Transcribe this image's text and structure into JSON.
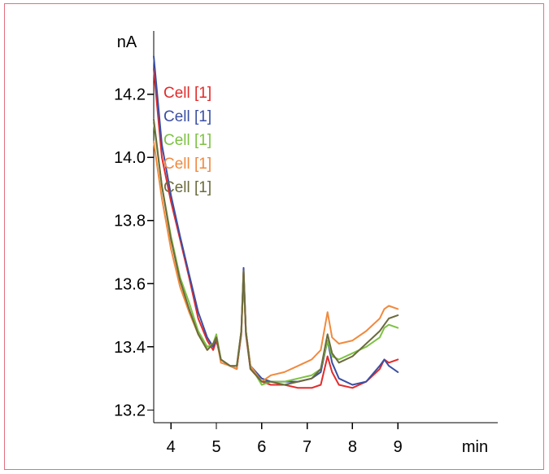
{
  "chart_data": {
    "type": "line",
    "title": "",
    "xlabel": "min",
    "ylabel": "nA",
    "xlim": [
      3.62,
      11.2
    ],
    "ylim": [
      13.16,
      14.4
    ],
    "xticks": [
      4,
      5,
      6,
      7,
      8,
      9
    ],
    "xtick_labels": [
      "4",
      "5",
      "6",
      "7",
      "8",
      "9"
    ],
    "yticks": [
      13.2,
      13.4,
      13.6,
      13.8,
      14.0,
      14.2
    ],
    "ytick_labels": [
      "13.2",
      "13.4",
      "13.6",
      "13.8",
      "14.0",
      "14.2"
    ],
    "grid": false,
    "legend_position": "top-left",
    "series": [
      {
        "name": "Cell [1]",
        "color": "#e32b2b",
        "points": [
          [
            3.62,
            14.28
          ],
          [
            3.8,
            14.0
          ],
          [
            4.0,
            13.86
          ],
          [
            4.2,
            13.74
          ],
          [
            4.4,
            13.62
          ],
          [
            4.6,
            13.49
          ],
          [
            4.8,
            13.42
          ],
          [
            4.93,
            13.39
          ],
          [
            5.0,
            13.42
          ],
          [
            5.1,
            13.36
          ],
          [
            5.3,
            13.34
          ],
          [
            5.45,
            13.33
          ],
          [
            5.55,
            13.44
          ],
          [
            5.6,
            13.63
          ],
          [
            5.65,
            13.44
          ],
          [
            5.75,
            13.33
          ],
          [
            6.0,
            13.29
          ],
          [
            6.2,
            13.28
          ],
          [
            6.5,
            13.28
          ],
          [
            6.8,
            13.27
          ],
          [
            7.1,
            13.27
          ],
          [
            7.3,
            13.28
          ],
          [
            7.45,
            13.37
          ],
          [
            7.55,
            13.32
          ],
          [
            7.7,
            13.28
          ],
          [
            8.0,
            13.27
          ],
          [
            8.3,
            13.29
          ],
          [
            8.6,
            13.33
          ],
          [
            8.7,
            13.36
          ],
          [
            8.8,
            13.35
          ],
          [
            9.0,
            13.36
          ]
        ]
      },
      {
        "name": "Cell [1]",
        "color": "#3b4fa3",
        "points": [
          [
            3.62,
            14.32
          ],
          [
            3.8,
            14.04
          ],
          [
            4.0,
            13.88
          ],
          [
            4.2,
            13.75
          ],
          [
            4.4,
            13.63
          ],
          [
            4.6,
            13.51
          ],
          [
            4.8,
            13.43
          ],
          [
            4.93,
            13.4
          ],
          [
            5.0,
            13.43
          ],
          [
            5.1,
            13.36
          ],
          [
            5.3,
            13.34
          ],
          [
            5.45,
            13.33
          ],
          [
            5.55,
            13.45
          ],
          [
            5.6,
            13.65
          ],
          [
            5.65,
            13.45
          ],
          [
            5.75,
            13.34
          ],
          [
            6.0,
            13.3
          ],
          [
            6.2,
            13.29
          ],
          [
            6.5,
            13.29
          ],
          [
            6.8,
            13.29
          ],
          [
            7.1,
            13.3
          ],
          [
            7.3,
            13.32
          ],
          [
            7.45,
            13.42
          ],
          [
            7.55,
            13.35
          ],
          [
            7.7,
            13.3
          ],
          [
            8.0,
            13.28
          ],
          [
            8.3,
            13.29
          ],
          [
            8.6,
            13.34
          ],
          [
            8.7,
            13.36
          ],
          [
            8.8,
            13.34
          ],
          [
            9.0,
            13.32
          ]
        ]
      },
      {
        "name": "Cell [1]",
        "color": "#7dc242",
        "points": [
          [
            3.62,
            14.11
          ],
          [
            3.8,
            13.91
          ],
          [
            4.0,
            13.75
          ],
          [
            4.2,
            13.62
          ],
          [
            4.4,
            13.54
          ],
          [
            4.6,
            13.45
          ],
          [
            4.8,
            13.4
          ],
          [
            4.93,
            13.41
          ],
          [
            5.0,
            13.44
          ],
          [
            5.1,
            13.36
          ],
          [
            5.3,
            13.34
          ],
          [
            5.45,
            13.34
          ],
          [
            5.55,
            13.45
          ],
          [
            5.6,
            13.63
          ],
          [
            5.65,
            13.45
          ],
          [
            5.75,
            13.34
          ],
          [
            6.0,
            13.28
          ],
          [
            6.2,
            13.29
          ],
          [
            6.5,
            13.29
          ],
          [
            6.8,
            13.3
          ],
          [
            7.1,
            13.31
          ],
          [
            7.3,
            13.33
          ],
          [
            7.45,
            13.42
          ],
          [
            7.55,
            13.37
          ],
          [
            7.7,
            13.36
          ],
          [
            8.0,
            13.38
          ],
          [
            8.3,
            13.4
          ],
          [
            8.6,
            13.43
          ],
          [
            8.7,
            13.46
          ],
          [
            8.8,
            13.47
          ],
          [
            9.0,
            13.46
          ]
        ]
      },
      {
        "name": "Cell [1]",
        "color": "#f08a3e",
        "points": [
          [
            3.62,
            14.05
          ],
          [
            3.8,
            13.87
          ],
          [
            4.0,
            13.71
          ],
          [
            4.2,
            13.59
          ],
          [
            4.4,
            13.51
          ],
          [
            4.6,
            13.44
          ],
          [
            4.8,
            13.39
          ],
          [
            4.93,
            13.41
          ],
          [
            5.0,
            13.43
          ],
          [
            5.1,
            13.35
          ],
          [
            5.3,
            13.34
          ],
          [
            5.45,
            13.33
          ],
          [
            5.55,
            13.45
          ],
          [
            5.6,
            13.64
          ],
          [
            5.65,
            13.45
          ],
          [
            5.75,
            13.34
          ],
          [
            6.0,
            13.29
          ],
          [
            6.2,
            13.31
          ],
          [
            6.5,
            13.32
          ],
          [
            6.8,
            13.34
          ],
          [
            7.1,
            13.36
          ],
          [
            7.3,
            13.39
          ],
          [
            7.45,
            13.51
          ],
          [
            7.55,
            13.43
          ],
          [
            7.7,
            13.41
          ],
          [
            8.0,
            13.42
          ],
          [
            8.3,
            13.45
          ],
          [
            8.6,
            13.49
          ],
          [
            8.7,
            13.52
          ],
          [
            8.8,
            13.53
          ],
          [
            9.0,
            13.52
          ]
        ]
      },
      {
        "name": "Cell [1]",
        "color": "#6b6b3d",
        "points": [
          [
            3.62,
            14.12
          ],
          [
            3.8,
            13.91
          ],
          [
            4.0,
            13.74
          ],
          [
            4.2,
            13.61
          ],
          [
            4.4,
            13.52
          ],
          [
            4.6,
            13.44
          ],
          [
            4.8,
            13.39
          ],
          [
            4.93,
            13.41
          ],
          [
            5.0,
            13.43
          ],
          [
            5.1,
            13.36
          ],
          [
            5.3,
            13.34
          ],
          [
            5.45,
            13.34
          ],
          [
            5.55,
            13.45
          ],
          [
            5.6,
            13.64
          ],
          [
            5.65,
            13.45
          ],
          [
            5.75,
            13.33
          ],
          [
            6.0,
            13.29
          ],
          [
            6.2,
            13.29
          ],
          [
            6.5,
            13.28
          ],
          [
            6.8,
            13.29
          ],
          [
            7.1,
            13.3
          ],
          [
            7.3,
            13.33
          ],
          [
            7.45,
            13.44
          ],
          [
            7.55,
            13.38
          ],
          [
            7.7,
            13.35
          ],
          [
            8.0,
            13.37
          ],
          [
            8.3,
            13.41
          ],
          [
            8.6,
            13.45
          ],
          [
            8.7,
            13.47
          ],
          [
            8.8,
            13.49
          ],
          [
            9.0,
            13.5
          ]
        ]
      }
    ]
  }
}
